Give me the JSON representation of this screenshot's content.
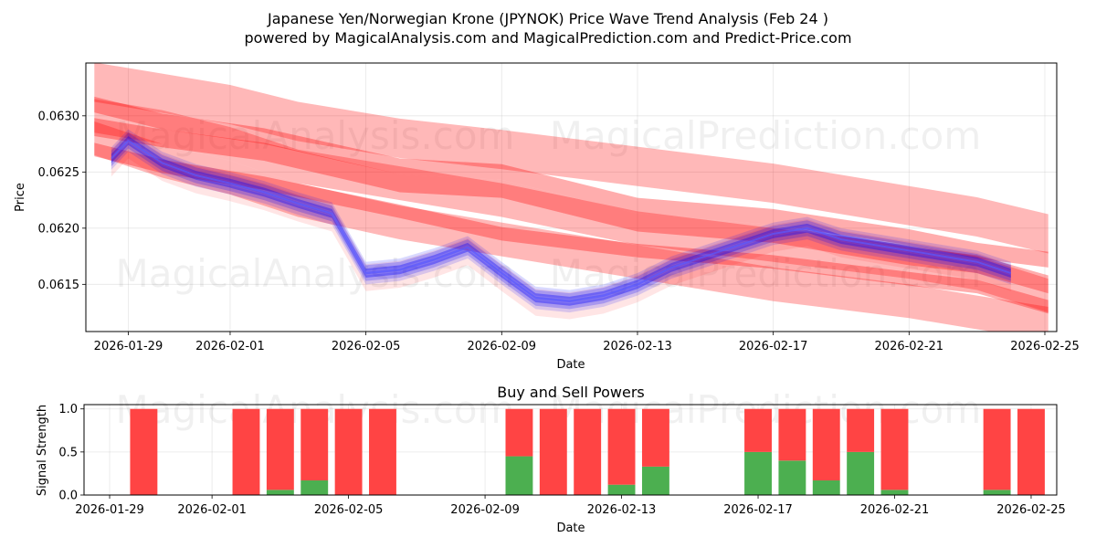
{
  "header": {
    "title_line1": "Japanese Yen/Norwegian Krone (JPYNOK) Price Wave Trend Analysis (Feb 24 )",
    "title_line2": "powered by MagicalAnalysis.com and MagicalPrediction.com and Predict-Price.com"
  },
  "watermarks": [
    "MagicalAnalysis.com",
    "MagicalPrediction.com"
  ],
  "colors": {
    "red": "#ff0000",
    "blue": "#0000ff",
    "buy": "#4caf50",
    "sell": "#ff4444"
  },
  "chart_data": [
    {
      "type": "area",
      "name": "price-wave-trend",
      "xlabel": "Date",
      "ylabel": "Price",
      "x_tick_labels": [
        "2026-01-29",
        "2026-02-01",
        "2026-02-05",
        "2026-02-09",
        "2026-02-13",
        "2026-02-17",
        "2026-02-21",
        "2026-02-25"
      ],
      "x_tick_days": [
        0,
        3,
        7,
        11,
        15,
        19,
        23,
        27
      ],
      "y_tick_labels": [
        "0.0615",
        "0.0620",
        "0.0625",
        "0.0630"
      ],
      "y_ticks": [
        0.0615,
        0.062,
        0.0625,
        0.063
      ],
      "xlim_days": [
        -1.25,
        27.35
      ],
      "ylim": [
        0.06108,
        0.06347
      ],
      "grid": true,
      "actual_price": {
        "days": [
          -0.5,
          0,
          1,
          2,
          3,
          4,
          5,
          6,
          7,
          8,
          9,
          10,
          11,
          12,
          13,
          14,
          15,
          16,
          17,
          18,
          19,
          20,
          21,
          22,
          23,
          24,
          25,
          26
        ],
        "values": [
          0.06262,
          0.06278,
          0.06258,
          0.06247,
          0.0624,
          0.06232,
          0.06222,
          0.06213,
          0.0616,
          0.06163,
          0.06172,
          0.06183,
          0.0616,
          0.06138,
          0.06135,
          0.0614,
          0.0615,
          0.06165,
          0.06175,
          0.06185,
          0.06195,
          0.062,
          0.0619,
          0.06185,
          0.0618,
          0.06175,
          0.0617,
          0.0616
        ]
      },
      "trend_bands": [
        {
          "days": [
            -1,
            1,
            4,
            8,
            11,
            15,
            19,
            23,
            25,
            27.1
          ],
          "values": [
            0.0631,
            0.06295,
            0.06282,
            0.06255,
            0.0625,
            0.0622,
            0.0621,
            0.06192,
            0.0618,
            0.06172
          ],
          "width": 0.00014
        },
        {
          "days": [
            -1,
            1,
            4,
            8,
            11,
            15,
            19,
            23,
            25,
            27.1
          ],
          "values": [
            0.0629,
            0.0628,
            0.06268,
            0.0624,
            0.06235,
            0.06205,
            0.06195,
            0.06175,
            0.06168,
            0.0615
          ],
          "width": 0.00016
        },
        {
          "days": [
            -1,
            1,
            4,
            8,
            11,
            15,
            19,
            23,
            25,
            27.1
          ],
          "values": [
            0.0627,
            0.06255,
            0.0624,
            0.06215,
            0.06195,
            0.0618,
            0.0617,
            0.06155,
            0.06148,
            0.0613
          ],
          "width": 0.00012
        }
      ],
      "forecast_bands": [
        {
          "days": [
            -1,
            1,
            3,
            5,
            8,
            11,
            15,
            19,
            23,
            25,
            27.1
          ],
          "values": [
            0.0633,
            0.0632,
            0.0631,
            0.06295,
            0.0628,
            0.0627,
            0.06255,
            0.0624,
            0.0622,
            0.0621,
            0.06195
          ],
          "width": 0.00035
        },
        {
          "days": [
            -1,
            1,
            3,
            5,
            8,
            11,
            15,
            19,
            23,
            25,
            27.1
          ],
          "values": [
            0.063,
            0.0629,
            0.06275,
            0.06255,
            0.0624,
            0.06225,
            0.062,
            0.06185,
            0.0617,
            0.0616,
            0.0614
          ],
          "width": 0.0003
        },
        {
          "days": [
            -1,
            1,
            3,
            5,
            8,
            11,
            15,
            19,
            23,
            25,
            27.1
          ],
          "values": [
            0.0628,
            0.0626,
            0.06245,
            0.06225,
            0.06205,
            0.0619,
            0.0617,
            0.0615,
            0.06135,
            0.06125,
            0.06115
          ],
          "width": 0.0003
        }
      ]
    },
    {
      "type": "bar",
      "name": "buy-and-sell-powers",
      "title": "Buy and Sell Powers",
      "xlabel": "Date",
      "ylabel": "Signal Strength",
      "x_tick_labels": [
        "2026-01-29",
        "2026-02-01",
        "2026-02-05",
        "2026-02-09",
        "2026-02-13",
        "2026-02-17",
        "2026-02-21",
        "2026-02-25"
      ],
      "x_tick_days": [
        0,
        3,
        7,
        11,
        15,
        19,
        23,
        27
      ],
      "y_tick_labels": [
        "0.0",
        "0.5",
        "1.0"
      ],
      "y_ticks": [
        0,
        0.5,
        1.0
      ],
      "xlim_days": [
        -0.75,
        27.75
      ],
      "ylim": [
        0,
        1.05
      ],
      "grid": true,
      "series": [
        {
          "name": "Buy",
          "days": [
            1,
            4,
            5,
            6,
            7,
            8,
            12,
            13,
            14,
            15,
            16,
            19,
            20,
            21,
            22,
            23,
            26,
            27
          ],
          "values": [
            0,
            0,
            0.06,
            0.17,
            0,
            0,
            0.45,
            0,
            0,
            0.12,
            0.33,
            0.5,
            0.4,
            0.17,
            0.5,
            0.06,
            0.06,
            0
          ]
        },
        {
          "name": "Sell",
          "days": [
            1,
            4,
            5,
            6,
            7,
            8,
            12,
            13,
            14,
            15,
            16,
            19,
            20,
            21,
            22,
            23,
            26,
            27
          ],
          "values": [
            1,
            1,
            0.94,
            0.83,
            1,
            1,
            0.55,
            1,
            1,
            0.88,
            0.67,
            0.5,
            0.6,
            0.83,
            0.5,
            0.94,
            0.94,
            1
          ]
        }
      ]
    }
  ]
}
